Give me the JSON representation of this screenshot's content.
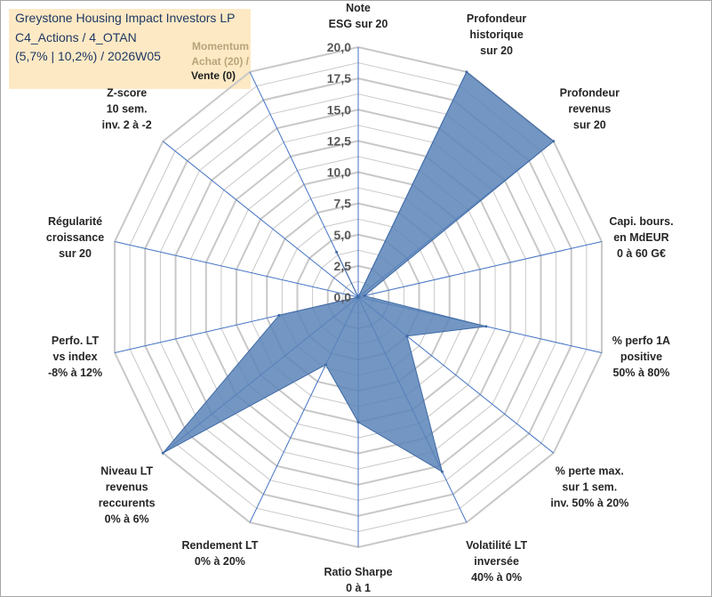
{
  "header": {
    "line1": "Greystone Housing Impact Investors LP",
    "line2": "C4_Actions / 4_OTAN",
    "line3": "(5,7% | 10,2%) / 2026W05",
    "momentum_line1": "Momentum",
    "momentum_line2": "Achat (20) /",
    "momentum_line3": "Vente (0)"
  },
  "chart_data": {
    "type": "radar",
    "rmin": 0,
    "rmax": 20,
    "grid": true,
    "fill_color": "#5b84b8",
    "line_color": "#3f6aa4",
    "grid_color": "#c8c8c8",
    "spoke_color": "#4472c4",
    "tick_labels": [
      "0,0",
      "2,5",
      "5,0",
      "7,5",
      "10,0",
      "12,5",
      "15,0",
      "17,5",
      "20,0"
    ],
    "axes": [
      {
        "lines": [
          "Note",
          "ESG sur 20"
        ],
        "value": 0
      },
      {
        "lines": [
          "Profondeur",
          "historique",
          "sur 20"
        ],
        "value": 20
      },
      {
        "lines": [
          "Profondeur",
          "revenus",
          "sur 20"
        ],
        "value": 20
      },
      {
        "lines": [
          "Capi. bours.",
          "en MdEUR",
          "0 à 60 G€"
        ],
        "value": 0.5
      },
      {
        "lines": [
          "% perfo 1A",
          "positive",
          "50% à 80%"
        ],
        "value": 10.5
      },
      {
        "lines": [
          "% perte max.",
          "sur 1 sem.",
          "inv. 50% à 20%"
        ],
        "value": 5
      },
      {
        "lines": [
          "Volatilité LT",
          "inversée",
          "40% à 0%"
        ],
        "value": 15.5
      },
      {
        "lines": [
          "Ratio Sharpe",
          "0 à 1"
        ],
        "value": 10
      },
      {
        "lines": [
          "Rendement LT",
          "0% à 20%"
        ],
        "value": 6
      },
      {
        "lines": [
          "Niveau LT",
          "revenus",
          "reccurents",
          "0% à 6%"
        ],
        "value": 20
      },
      {
        "lines": [
          "Perfo. LT",
          "vs index",
          "-8% à 12%"
        ],
        "value": 6.5
      },
      {
        "lines": [
          "Régularité",
          "croissance",
          "sur 20"
        ],
        "value": 0
      },
      {
        "lines": [
          "Z-score",
          "10 sem.",
          "inv. 2 à -2"
        ],
        "value": 0
      },
      {
        "lines": [
          "",
          ""
        ],
        "value": 4
      }
    ]
  }
}
